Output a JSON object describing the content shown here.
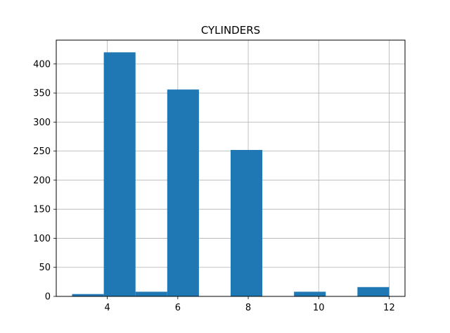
{
  "chart_data": {
    "type": "bar",
    "title": "CYLINDERS",
    "xlabel": "",
    "ylabel": "",
    "xlim": [
      2.55,
      12.45
    ],
    "ylim": [
      0,
      441
    ],
    "xticks": [
      4,
      6,
      8,
      10,
      12
    ],
    "yticks": [
      0,
      50,
      100,
      150,
      200,
      250,
      300,
      350,
      400
    ],
    "grid": true,
    "bar_color": "#1f77b4",
    "bins": [
      {
        "x0": 3.0,
        "x1": 3.9,
        "count": 4
      },
      {
        "x0": 3.9,
        "x1": 4.8,
        "count": 420
      },
      {
        "x0": 4.8,
        "x1": 5.7,
        "count": 8
      },
      {
        "x0": 5.7,
        "x1": 6.6,
        "count": 356
      },
      {
        "x0": 6.6,
        "x1": 7.5,
        "count": 0
      },
      {
        "x0": 7.5,
        "x1": 8.4,
        "count": 252
      },
      {
        "x0": 8.4,
        "x1": 9.3,
        "count": 0
      },
      {
        "x0": 9.3,
        "x1": 10.2,
        "count": 8
      },
      {
        "x0": 10.2,
        "x1": 11.1,
        "count": 0
      },
      {
        "x0": 11.1,
        "x1": 12.0,
        "count": 16
      }
    ]
  }
}
